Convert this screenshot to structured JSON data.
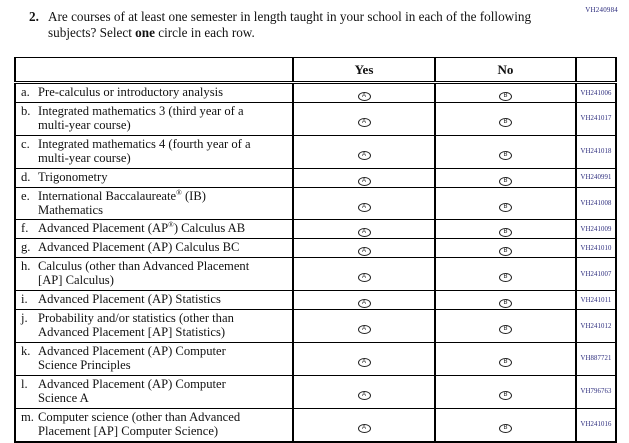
{
  "page": {
    "form_code": "VH240984",
    "question": {
      "number": "2.",
      "text_before_bold": "Are courses of at least one semester in length taught in your school in each of the following subjects? Select ",
      "bold_word": "one",
      "text_after_bold": " circle in each row."
    }
  },
  "table": {
    "columns": {
      "yes": "Yes",
      "no": "No"
    },
    "options": {
      "yes_letter": "A",
      "no_letter": "B"
    },
    "rows": [
      {
        "prefix": "a.",
        "label": "Pre-calculus or introductory analysis",
        "code": "VH241006"
      },
      {
        "prefix": "b.",
        "label": "Integrated mathematics 3 (third year of a\nmulti-year course)",
        "code": "VH241017"
      },
      {
        "prefix": "c.",
        "label": "Integrated mathematics 4 (fourth year of a\nmulti-year course)",
        "code": "VH241018"
      },
      {
        "prefix": "d.",
        "label": "Trigonometry",
        "code": "VH240991"
      },
      {
        "prefix": "e.",
        "label": "International Baccalaureate® (IB)\nMathematics",
        "code": "VH241008"
      },
      {
        "prefix": "f.",
        "label": "Advanced Placement (AP®) Calculus AB",
        "code": "VH241009"
      },
      {
        "prefix": "g.",
        "label": "Advanced Placement (AP) Calculus BC",
        "code": "VH241010"
      },
      {
        "prefix": "h.",
        "label": "Calculus (other than Advanced Placement\n[AP] Calculus)",
        "code": "VH241007"
      },
      {
        "prefix": "i.",
        "label": "Advanced Placement (AP) Statistics",
        "code": "VH241011"
      },
      {
        "prefix": "j.",
        "label": "Probability and/or statistics (other than\nAdvanced Placement [AP] Statistics)",
        "code": "VH241012"
      },
      {
        "prefix": "k.",
        "label": "Advanced Placement (AP) Computer\nScience Principles",
        "code": "VH887721"
      },
      {
        "prefix": "l.",
        "label": "Advanced Placement (AP) Computer\nScience A",
        "code": "VH796763"
      },
      {
        "prefix": "m.",
        "label": "Computer science (other than Advanced\nPlacement [AP] Computer Science)",
        "code": "VH241016"
      }
    ]
  }
}
